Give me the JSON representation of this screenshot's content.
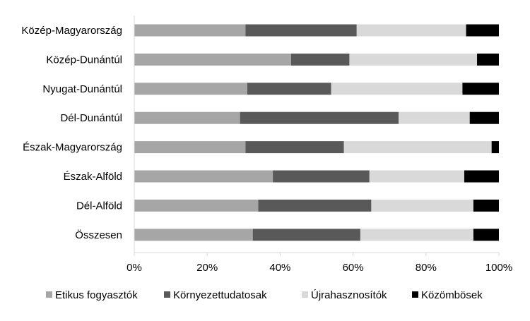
{
  "chart_data": {
    "type": "bar",
    "orientation": "horizontal",
    "stacked": "percent",
    "categories": [
      "Közép-Magyarország",
      "Közép-Dunántúl",
      "Nyugat-Dunántúl",
      "Dél-Dunántúl",
      "Észak-Magyarország",
      "Észak-Alföld",
      "Dél-Alföld",
      "Összesen"
    ],
    "series": [
      {
        "name": "Etikus fogyasztók",
        "color": "#a6a6a6",
        "values": [
          30.5,
          43,
          31,
          29,
          30.5,
          38,
          34,
          32.5
        ]
      },
      {
        "name": "Környezettudatosak",
        "color": "#595959",
        "values": [
          30.5,
          16,
          23,
          43.5,
          27,
          26.5,
          31,
          29.5
        ]
      },
      {
        "name": "Újrahasznosítók",
        "color": "#d9d9d9",
        "values": [
          30,
          35,
          36,
          19.5,
          40.5,
          26,
          28,
          31
        ]
      },
      {
        "name": "Közömbösek",
        "color": "#000000",
        "values": [
          9,
          6,
          10,
          8,
          2,
          9.5,
          7,
          7
        ]
      }
    ],
    "xlim": [
      0,
      100
    ],
    "x_ticks": [
      "0%",
      "20%",
      "40%",
      "60%",
      "80%",
      "100%"
    ],
    "grid": false,
    "legend": "bottom",
    "title": "",
    "xlabel": "",
    "ylabel": ""
  }
}
